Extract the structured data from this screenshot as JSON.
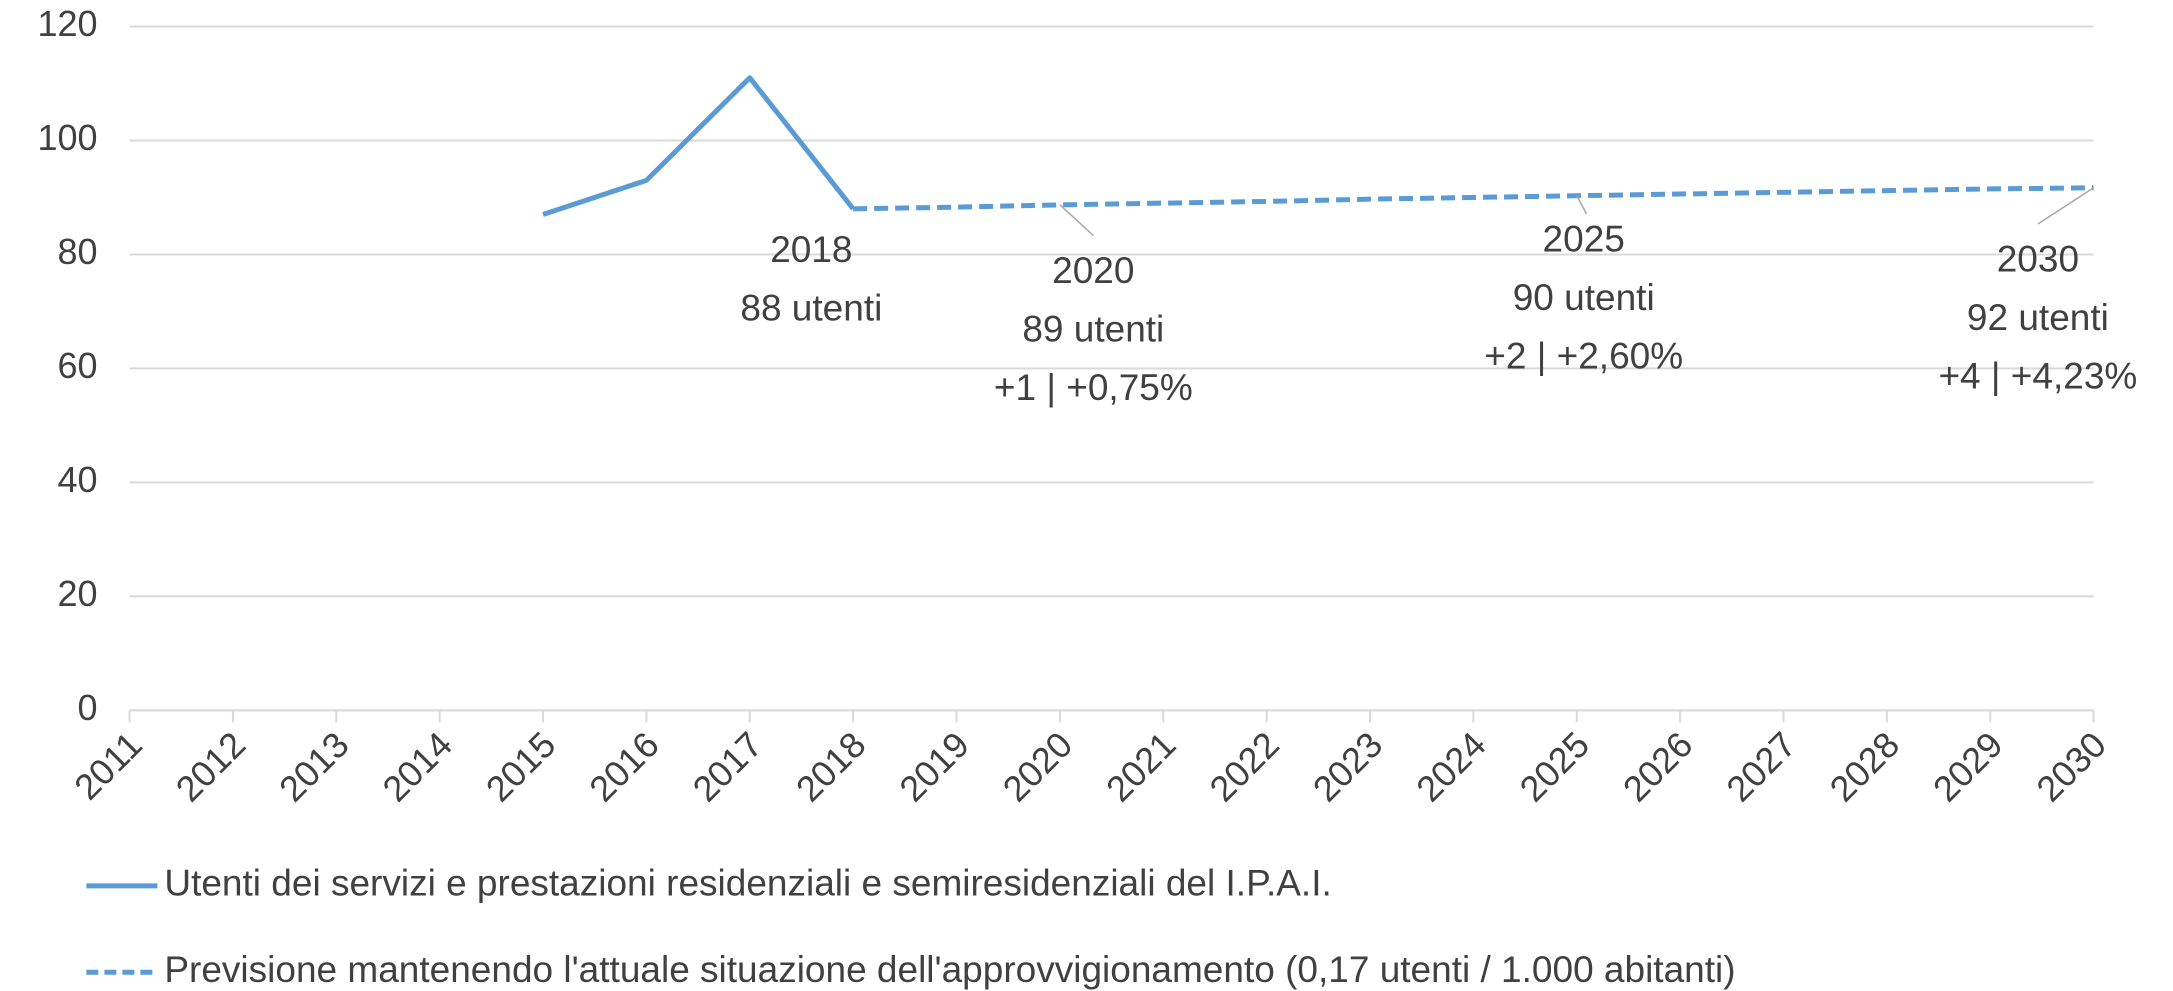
{
  "chart_data": {
    "type": "line",
    "categories": [
      "2011",
      "2012",
      "2013",
      "2014",
      "2015",
      "2016",
      "2017",
      "2018",
      "2019",
      "2020",
      "2021",
      "2022",
      "2023",
      "2024",
      "2025",
      "2026",
      "2027",
      "2028",
      "2029",
      "2030"
    ],
    "series": [
      {
        "name": "Utenti dei servizi e prestazioni residenziali e semiresidenziali del I.P.A.I.",
        "color": "#5b9bd5",
        "dash": false,
        "values": [
          null,
          null,
          null,
          null,
          87,
          93,
          111,
          88,
          null,
          null,
          null,
          null,
          null,
          null,
          null,
          null,
          null,
          null,
          null,
          null
        ]
      },
      {
        "name": "Previsione mantenendo l'attuale situazione dell'approvvigionamento (0,17 utenti / 1.000 abitanti)",
        "color": "#5b9bd5",
        "dash": true,
        "values": [
          null,
          null,
          null,
          null,
          null,
          null,
          null,
          88,
          88.3,
          88.7,
          89,
          89.3,
          89.7,
          90,
          90.3,
          90.6,
          90.9,
          91.2,
          91.5,
          91.7
        ]
      }
    ],
    "annotations": [
      {
        "x": "2018",
        "lines": [
          "2018",
          "88 utenti"
        ]
      },
      {
        "x": "2020",
        "lines": [
          "2020",
          "89 utenti",
          "+1 | +0,75%"
        ]
      },
      {
        "x": "2025",
        "lines": [
          "2025",
          "90 utenti",
          "+2 | +2,60%"
        ]
      },
      {
        "x": "2030",
        "lines": [
          "2030",
          "92 utenti",
          "+4 | +4,23%"
        ]
      }
    ],
    "ylim": [
      0,
      120
    ],
    "yticks": [
      0,
      20,
      40,
      60,
      80,
      100,
      120
    ],
    "grid": true,
    "legend": "bottom"
  }
}
